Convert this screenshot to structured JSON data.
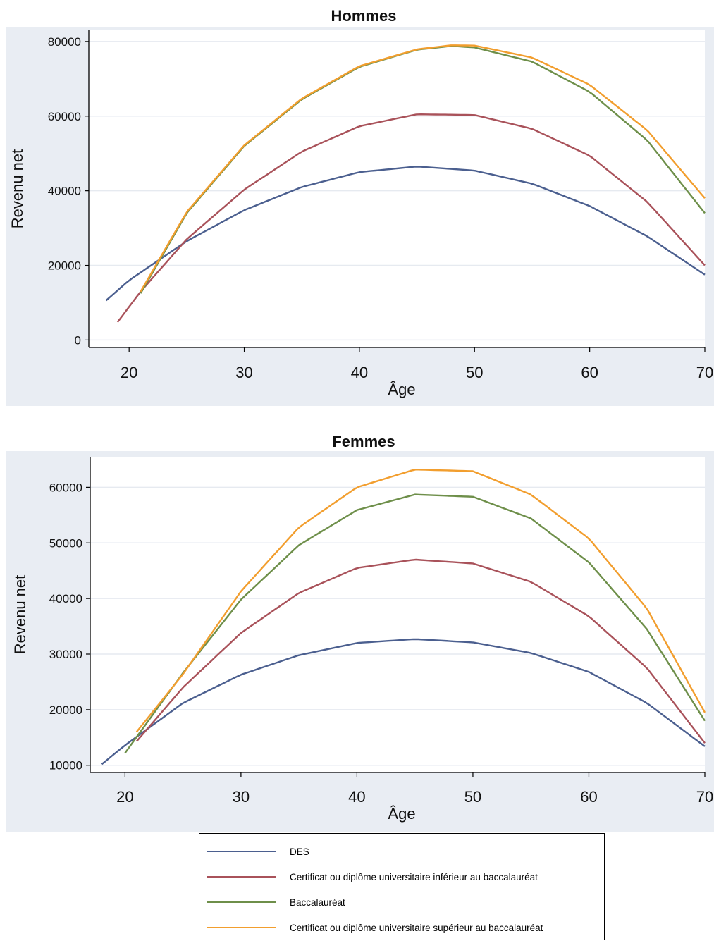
{
  "chart_data": [
    {
      "type": "line",
      "title": "Hommes",
      "xlabel": "Âge",
      "ylabel": "Revenu net",
      "xlim": [
        16.5,
        70
      ],
      "ylim": [
        -2000,
        83000
      ],
      "xticks": [
        20,
        30,
        40,
        50,
        60,
        70
      ],
      "xtick_labels": [
        "20",
        "30",
        "40",
        "50",
        "60",
        "70"
      ],
      "yticks": [
        0,
        20000,
        40000,
        60000,
        80000
      ],
      "ytick_labels": [
        "0",
        "20000",
        "40000",
        "60000",
        "80000"
      ],
      "grid": true,
      "series": [
        {
          "name": "DES",
          "color": "#4b5f8f",
          "x": [
            18,
            20,
            25,
            30,
            35,
            40,
            45,
            50,
            55,
            60,
            65,
            70
          ],
          "y": [
            10600,
            16000,
            26500,
            34800,
            41000,
            45000,
            46500,
            45400,
            41900,
            35900,
            27800,
            17500
          ]
        },
        {
          "name": "Certificat ou diplôme universitaire inférieur au baccalauréat",
          "color": "#a9525a",
          "x": [
            19,
            21,
            25,
            30,
            35,
            40,
            45,
            50,
            55,
            60,
            65,
            70
          ],
          "y": [
            4800,
            13000,
            27000,
            40300,
            50500,
            57300,
            60500,
            60300,
            56600,
            49400,
            37000,
            20000
          ]
        },
        {
          "name": "Baccalauréat",
          "color": "#6e8f4a",
          "x": [
            21,
            25,
            30,
            35,
            40,
            45,
            48,
            50,
            55,
            60,
            65,
            70
          ],
          "y": [
            12500,
            34000,
            52000,
            64500,
            73200,
            77800,
            78800,
            78400,
            74600,
            66500,
            53500,
            34000
          ]
        },
        {
          "name": "Certificat ou diplôme universitaire supérieur au baccalauréat",
          "color": "#f29e2e",
          "x": [
            21,
            25,
            30,
            35,
            40,
            45,
            48,
            50,
            55,
            60,
            65,
            70
          ],
          "y": [
            13000,
            34300,
            52200,
            64700,
            73400,
            77900,
            79000,
            78900,
            75700,
            68400,
            56200,
            38000
          ]
        }
      ]
    },
    {
      "type": "line",
      "title": "Femmes",
      "xlabel": "Âge",
      "ylabel": "Revenu net",
      "xlim": [
        17,
        70
      ],
      "ylim": [
        8700,
        65500
      ],
      "xticks": [
        20,
        30,
        40,
        50,
        60,
        70
      ],
      "xtick_labels": [
        "20",
        "30",
        "40",
        "50",
        "60",
        "70"
      ],
      "yticks": [
        10000,
        20000,
        30000,
        40000,
        50000,
        60000
      ],
      "ytick_labels": [
        "10000",
        "20000",
        "30000",
        "40000",
        "50000",
        "60000"
      ],
      "grid": true,
      "series": [
        {
          "name": "DES",
          "color": "#4b5f8f",
          "x": [
            18,
            20,
            25,
            30,
            35,
            40,
            45,
            50,
            55,
            60,
            65,
            70
          ],
          "y": [
            10200,
            13600,
            21200,
            26300,
            29800,
            32000,
            32700,
            32100,
            30200,
            26800,
            21200,
            13400
          ]
        },
        {
          "name": "Certificat ou diplôme universitaire inférieur au baccalauréat",
          "color": "#a9525a",
          "x": [
            21,
            25,
            30,
            35,
            40,
            45,
            50,
            55,
            60,
            65,
            70
          ],
          "y": [
            14300,
            24000,
            33800,
            41000,
            45500,
            47000,
            46300,
            43000,
            36800,
            27500,
            14000
          ]
        },
        {
          "name": "Baccalauréat",
          "color": "#6e8f4a",
          "x": [
            20,
            25,
            30,
            35,
            40,
            45,
            50,
            55,
            60,
            65,
            70
          ],
          "y": [
            12200,
            26600,
            39800,
            49600,
            55900,
            58700,
            58300,
            54400,
            46500,
            34500,
            18000
          ]
        },
        {
          "name": "Certificat ou diplôme universitaire supérieur au baccalauréat",
          "color": "#f29e2e",
          "x": [
            21,
            25,
            30,
            35,
            40,
            45,
            50,
            55,
            60,
            65,
            70
          ],
          "y": [
            16000,
            26400,
            41300,
            52800,
            60000,
            63200,
            62900,
            58700,
            50800,
            38200,
            19500
          ]
        }
      ]
    }
  ],
  "legend": {
    "entries": [
      {
        "label": "DES",
        "color": "#4b5f8f"
      },
      {
        "label": "Certificat ou diplôme universitaire inférieur au baccalauréat",
        "color": "#a9525a"
      },
      {
        "label": "Baccalauréat",
        "color": "#6e8f4a"
      },
      {
        "label": "Certificat ou diplôme universitaire supérieur au baccalauréat",
        "color": "#f29e2e"
      }
    ]
  }
}
